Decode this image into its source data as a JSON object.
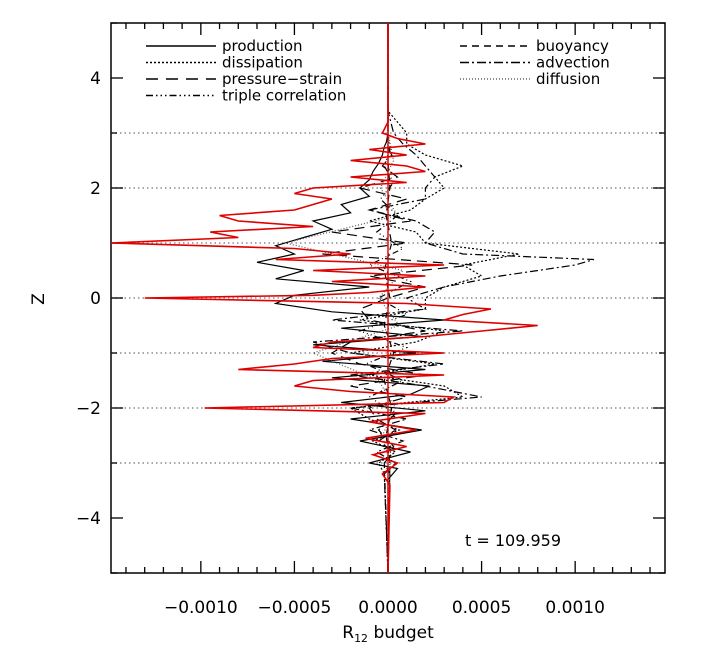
{
  "chart_data": {
    "type": "line",
    "title": "",
    "xlabel": "R",
    "xlabel_sub": "12",
    "xlabel_suffix": " budget",
    "ylabel": "Z",
    "xlim": [
      -0.00148,
      0.00148
    ],
    "ylim": [
      -5,
      5
    ],
    "x_ticks": [
      -0.001,
      -0.0005,
      0.0,
      0.0005,
      0.001
    ],
    "x_tick_labels": [
      "−0.0010",
      "−0.0005",
      "0.0000",
      "0.0005",
      "0.0010"
    ],
    "y_ticks": [
      -4,
      -2,
      0,
      2,
      4
    ],
    "y_tick_labels": [
      "−4",
      "−2",
      "0",
      "2",
      "4"
    ],
    "reference_lines_z": [
      -3,
      -2,
      -1,
      0,
      1,
      2,
      3
    ],
    "annotation": "t = 109.959",
    "legend_placement": "top",
    "legend": [
      {
        "label": "production",
        "style": "solid",
        "column": 0
      },
      {
        "label": "dissipation",
        "style": "dotted",
        "column": 0
      },
      {
        "label": "pressure−strain",
        "style": "longdash",
        "column": 0
      },
      {
        "label": "triple correlation",
        "style": "dashdotdotdot",
        "column": 0
      },
      {
        "label": "buoyancy",
        "style": "dashed",
        "column": 1
      },
      {
        "label": "advection",
        "style": "dashdot",
        "column": 1
      },
      {
        "label": "diffusion",
        "style": "fine-dotted",
        "column": 1
      }
    ],
    "series": [
      {
        "name": "production",
        "color": "#000000",
        "dash": "",
        "z": [
          -5,
          -3.3,
          -3.1,
          -3.0,
          -2.8,
          -2.6,
          -2.4,
          -2.2,
          -2.05,
          -1.9,
          -1.75,
          -1.6,
          -1.45,
          -1.3,
          -1.15,
          -1.0,
          -0.85,
          -0.7,
          -0.55,
          -0.4,
          -0.25,
          -0.1,
          0.05,
          0.2,
          0.35,
          0.5,
          0.65,
          0.8,
          0.95,
          1.1,
          1.25,
          1.4,
          1.55,
          1.7,
          1.85,
          2.0,
          2.15,
          2.3,
          2.45,
          2.6,
          2.75,
          2.9,
          3.05,
          3.2,
          3.4,
          5
        ],
        "x": [
          0,
          0,
          5e-05,
          -0.0001,
          0.00012,
          -0.00015,
          0.00018,
          -0.0002,
          0.0002,
          -0.00025,
          0.00012,
          0.00022,
          -0.0003,
          0.0002,
          -0.00035,
          0.00015,
          -0.0004,
          0.00018,
          -0.00025,
          0.0003,
          -0.0003,
          -0.0006,
          -0.0005,
          -0.0001,
          -0.0006,
          -0.00045,
          -0.0007,
          -0.0005,
          -0.0006,
          -0.00045,
          -0.0003,
          -0.0004,
          -0.0002,
          -0.00025,
          -0.0001,
          -0.00015,
          -0.0001,
          -8e-05,
          -5e-05,
          -3e-05,
          -2e-05,
          0,
          0,
          0,
          0,
          0
        ]
      },
      {
        "name": "dissipation",
        "color": "#000000",
        "dash": "2,2",
        "z": [
          -5,
          -3.2,
          -3.0,
          -2.8,
          -2.6,
          -2.4,
          -2.2,
          -2.0,
          -1.8,
          -1.6,
          -1.4,
          -1.2,
          -1.0,
          -0.8,
          -0.6,
          -0.4,
          -0.2,
          0.0,
          0.2,
          0.4,
          0.6,
          0.8,
          1.0,
          1.2,
          1.4,
          1.6,
          1.8,
          2.0,
          2.2,
          2.4,
          2.6,
          2.8,
          3.0,
          3.2,
          3.4,
          5
        ],
        "x": [
          0,
          -2e-05,
          -5e-05,
          4e-05,
          -8e-05,
          6e-05,
          -0.0001,
          -0.0002,
          0.0004,
          0.0003,
          -0.0001,
          0.00025,
          -0.0002,
          0.00015,
          0.0003,
          -0.00015,
          0.0002,
          0.0002,
          0.0003,
          0.0005,
          0.0004,
          0.0007,
          0.0002,
          0.00015,
          -0.0001,
          0.00012,
          0.0002,
          0.0003,
          0.00025,
          0.0004,
          0.0002,
          0.0001,
          0.0001,
          5e-05,
          0,
          0
        ]
      },
      {
        "name": "pressure-strain",
        "color": "#000000",
        "dash": "10,6",
        "z": [
          -5,
          -3.2,
          -3.0,
          -2.8,
          -2.6,
          -2.4,
          -2.2,
          -2.0,
          -1.8,
          -1.6,
          -1.4,
          -1.2,
          -1.0,
          -0.8,
          -0.6,
          -0.4,
          -0.2,
          0.0,
          0.2,
          0.4,
          0.6,
          0.8,
          1.0,
          1.2,
          1.4,
          1.6,
          1.8,
          2.0,
          2.2,
          2.4,
          2.6,
          2.8,
          3.0,
          3.4,
          5
        ],
        "x": [
          0,
          1e-05,
          -2e-05,
          3e-05,
          -5e-05,
          4e-05,
          -6e-05,
          -0.0001,
          0.0001,
          -0.0002,
          0.0002,
          -0.00015,
          -0.0003,
          -0.0002,
          0.0002,
          -0.0001,
          -0.00015,
          0.0,
          0.0002,
          -0.0001,
          0.00045,
          -0.00035,
          0.0001,
          -0.0003,
          0.00012,
          -0.0001,
          0.0001,
          -0.00015,
          5e-05,
          -3e-05,
          2e-05,
          -1e-05,
          0.0,
          0,
          0
        ]
      },
      {
        "name": "triple correlation",
        "color": "#000000",
        "dash": "6,3,1,3,1,3,1,3",
        "z": [
          -5,
          -3.0,
          -2.7,
          -2.4,
          -2.1,
          -1.8,
          -1.5,
          -1.2,
          -0.9,
          -0.6,
          -0.3,
          0.0,
          0.3,
          0.6,
          0.9,
          1.2,
          1.5,
          1.8,
          2.1,
          2.4,
          2.7,
          3.0,
          5
        ],
        "x": [
          0,
          -2e-05,
          3e-05,
          -5e-05,
          4e-05,
          -0.0001,
          8e-05,
          -0.00012,
          0.0001,
          -0.00015,
          0.0001,
          -5e-05,
          0.00012,
          -0.0001,
          8e-05,
          -6e-05,
          5e-05,
          -4e-05,
          3e-05,
          -2e-05,
          1e-05,
          0,
          0
        ]
      },
      {
        "name": "buoyancy",
        "color": "#000000",
        "dash": "6,4",
        "z": [
          -5,
          -3.0,
          -2.5,
          -2.0,
          -1.5,
          -1.0,
          -0.5,
          0.0,
          0.5,
          1.0,
          1.5,
          2.0,
          2.5,
          3.0,
          5
        ],
        "x": [
          0,
          1e-05,
          -1e-05,
          2e-05,
          -2e-05,
          3e-05,
          -2e-05,
          1e-05,
          -2e-05,
          2e-05,
          -1e-05,
          1e-05,
          0,
          0,
          0
        ]
      },
      {
        "name": "advection",
        "color": "#000000",
        "dash": "8,3,2,3",
        "z": [
          -5,
          -3.2,
          -3.0,
          -2.8,
          -2.6,
          -2.4,
          -2.2,
          -2.0,
          -1.8,
          -1.6,
          -1.4,
          -1.2,
          -1.0,
          -0.8,
          -0.6,
          -0.4,
          -0.2,
          0.0,
          0.2,
          0.4,
          0.6,
          0.7,
          0.8,
          1.0,
          1.2,
          1.4,
          1.6,
          1.8,
          2.0,
          2.2,
          2.4,
          2.6,
          2.8,
          3.0,
          3.4,
          5
        ],
        "x": [
          0,
          -2e-05,
          4e-05,
          -6e-05,
          8e-05,
          -0.0001,
          0.0001,
          -0.0002,
          0.0005,
          0.0002,
          -0.0002,
          0.0003,
          -0.0002,
          -0.0004,
          0.0004,
          -0.0003,
          0.0002,
          0.0001,
          0.0003,
          0.0006,
          0.001,
          0.0011,
          0.0004,
          0.0002,
          0.00025,
          0.00015,
          -0.0001,
          0.0002,
          0.0002,
          0.00025,
          0.0002,
          0.00015,
          8e-05,
          3e-05,
          0,
          0
        ]
      },
      {
        "name": "diffusion",
        "color": "#555555",
        "dash": "1,2",
        "z": [
          -5,
          -3.0,
          -2.5,
          -2.0,
          -1.5,
          -1.0,
          -0.5,
          0.0,
          0.5,
          1.0,
          1.5,
          2.0,
          2.5,
          3.0,
          5
        ],
        "x": [
          0,
          1e-05,
          -3e-05,
          4e-05,
          -5e-05,
          -0.0004,
          6e-05,
          -5e-05,
          8e-05,
          -0.00055,
          5e-05,
          -4e-05,
          3e-05,
          0,
          0
        ]
      },
      {
        "name": "",
        "color": "#e00000",
        "dash": "",
        "z": [
          -5,
          -3.4,
          -3.2,
          -3.0,
          -2.85,
          -2.7,
          -2.55,
          -2.4,
          -2.25,
          -2.1,
          -2.0,
          -1.9,
          -1.8,
          -1.7,
          -1.6,
          -1.5,
          -1.4,
          -1.3,
          -1.2,
          -1.1,
          -1.0,
          -0.9,
          -0.8,
          -0.7,
          -0.6,
          -0.5,
          -0.4,
          -0.3,
          -0.2,
          -0.1,
          0.0,
          0.05,
          0.1,
          0.2,
          0.3,
          0.4,
          0.5,
          0.6,
          0.7,
          0.8,
          0.9,
          1.0,
          1.1,
          1.2,
          1.3,
          1.4,
          1.5,
          1.6,
          1.7,
          1.8,
          1.9,
          2.0,
          2.1,
          2.2,
          2.3,
          2.4,
          2.5,
          2.6,
          2.7,
          2.8,
          2.9,
          3.0,
          3.2,
          5
        ],
        "x": [
          0,
          1e-05,
          -3e-05,
          5e-05,
          -8e-05,
          0.0001,
          -0.00012,
          0.00015,
          -0.0001,
          0.0002,
          -0.00098,
          0.0003,
          0.00035,
          -0.0002,
          -0.0005,
          -0.0004,
          0.0003,
          -0.0008,
          -0.0005,
          -0.0003,
          0.0003,
          -0.0004,
          -0.0003,
          0.0002,
          0.0005,
          0.0008,
          0.0003,
          0.0004,
          0.00055,
          0.0001,
          -0.0013,
          -0.0004,
          -0.0001,
          0.0002,
          -0.0003,
          0.0002,
          -0.0004,
          0.0003,
          -0.0006,
          -0.0002,
          -0.0005,
          -0.00148,
          -0.0008,
          -0.00095,
          -0.0004,
          -0.0008,
          -0.0009,
          -0.0005,
          -0.0004,
          -0.0003,
          -0.0005,
          -0.0004,
          0.0001,
          -0.0002,
          0.0002,
          0.0001,
          -0.0002,
          0.0001,
          -0.0001,
          0.0002,
          5e-05,
          -3e-05,
          0,
          0
        ]
      }
    ]
  }
}
